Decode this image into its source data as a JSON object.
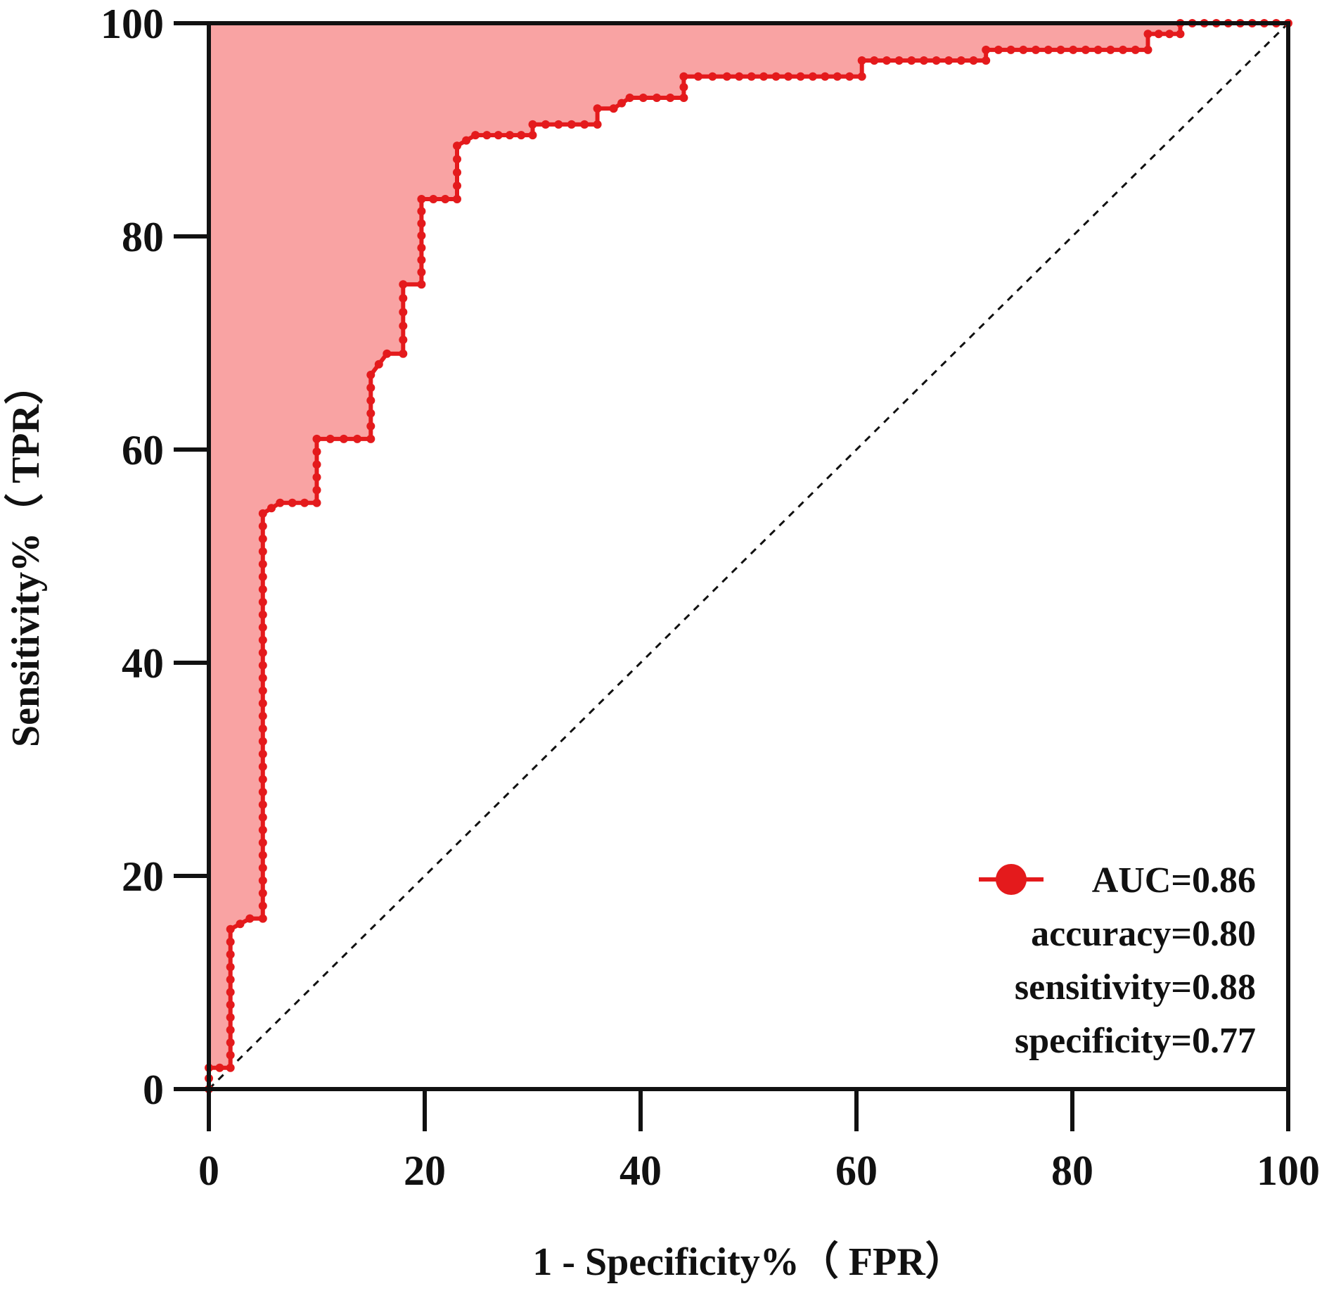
{
  "chart_data": {
    "type": "line",
    "subtype": "roc",
    "xlabel": "1 - Specificity%（ FPR）",
    "ylabel": "Sensitivity%（ TPR）",
    "xlim": [
      0,
      100
    ],
    "ylim": [
      0,
      100
    ],
    "xticks": [
      "0",
      "20",
      "40",
      "60",
      "80",
      "100"
    ],
    "yticks": [
      "0",
      "20",
      "40",
      "60",
      "80",
      "100"
    ],
    "grid": false,
    "legend_position": "bottom-right",
    "colors": {
      "line": "#e41a1c",
      "fill": "#f9a3a3",
      "axis": "#111111",
      "diagonal": "#111111"
    },
    "reference_line": {
      "style": "dashed",
      "from": [
        0,
        0
      ],
      "to": [
        100,
        100
      ]
    },
    "series": [
      {
        "name": "AUC=0.86",
        "x": [
          0,
          0,
          2,
          2,
          3.8,
          5,
          5,
          6.6,
          10,
          10,
          15,
          15,
          16.5,
          18,
          18,
          19.7,
          19.7,
          23,
          23,
          24.7,
          30,
          30,
          36,
          36,
          37.5,
          39,
          44,
          44,
          48,
          60.5,
          60.5,
          72,
          72,
          87,
          87,
          90,
          90,
          100
        ],
        "y": [
          0,
          2,
          2,
          15,
          16,
          16,
          54,
          55,
          55,
          61,
          61,
          67,
          69,
          69,
          75.5,
          75.5,
          83.5,
          83.5,
          88.5,
          89.5,
          89.5,
          90.5,
          90.5,
          92,
          92,
          93,
          93,
          95,
          95,
          95,
          96.5,
          96.5,
          97.5,
          97.5,
          99,
          99,
          100,
          100
        ]
      }
    ],
    "legend": [
      {
        "text": "AUC=0.86",
        "marker": true
      },
      {
        "text": "accuracy=0.80",
        "marker": false
      },
      {
        "text": "sensitivity=0.88",
        "marker": false
      },
      {
        "text": "specificity=0.77",
        "marker": false
      }
    ]
  }
}
